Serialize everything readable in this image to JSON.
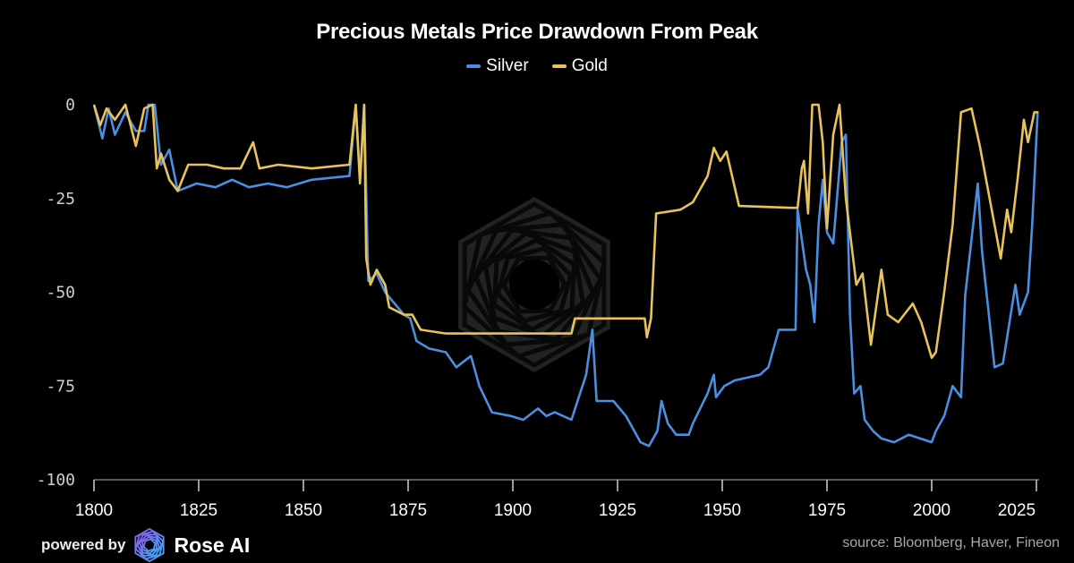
{
  "chart_data": {
    "type": "line",
    "title": "Precious Metals Price Drawdown From Peak",
    "xlabel": "",
    "ylabel": "",
    "xlim": [
      1800,
      2025.5
    ],
    "ylim": [
      -100,
      0
    ],
    "xticks": [
      "1800",
      "1825",
      "1850",
      "1875",
      "1900",
      "1925",
      "1950",
      "1975",
      "2000",
      "2025"
    ],
    "yticks": [
      "0",
      "-25",
      "-50",
      "-75",
      "-100"
    ],
    "grid": false,
    "legend_position": "top-center",
    "series": [
      {
        "name": "Silver",
        "color": "#4a8fe0",
        "points": [
          [
            1800,
            0
          ],
          [
            1802,
            -9
          ],
          [
            1803.5,
            -1
          ],
          [
            1805,
            -8
          ],
          [
            1807.5,
            -2
          ],
          [
            1810,
            -7
          ],
          [
            1812,
            -7
          ],
          [
            1813,
            0
          ],
          [
            1814.5,
            0
          ],
          [
            1816,
            -16
          ],
          [
            1818,
            -12
          ],
          [
            1820,
            -23
          ],
          [
            1824.5,
            -21
          ],
          [
            1829,
            -22
          ],
          [
            1833,
            -20
          ],
          [
            1837,
            -22
          ],
          [
            1841.5,
            -21
          ],
          [
            1846,
            -22
          ],
          [
            1852,
            -20
          ],
          [
            1861,
            -19
          ],
          [
            1862.5,
            0
          ],
          [
            1863.5,
            -20
          ],
          [
            1864.5,
            0
          ],
          [
            1865.5,
            -47
          ],
          [
            1867.5,
            -45
          ],
          [
            1869.5,
            -50
          ],
          [
            1874,
            -56
          ],
          [
            1875.5,
            -57
          ],
          [
            1877,
            -63
          ],
          [
            1880,
            -65
          ],
          [
            1884,
            -66
          ],
          [
            1886.5,
            -70
          ],
          [
            1890,
            -67
          ],
          [
            1892,
            -75
          ],
          [
            1895,
            -82
          ],
          [
            1899.5,
            -83
          ],
          [
            1902.5,
            -84
          ],
          [
            1906,
            -81
          ],
          [
            1908,
            -83
          ],
          [
            1910,
            -82
          ],
          [
            1914,
            -84
          ],
          [
            1917.5,
            -72
          ],
          [
            1919,
            -60
          ],
          [
            1920,
            -79
          ],
          [
            1924,
            -79
          ],
          [
            1927,
            -83
          ],
          [
            1930.5,
            -90
          ],
          [
            1932.5,
            -91
          ],
          [
            1934.5,
            -87
          ],
          [
            1935.5,
            -79
          ],
          [
            1937,
            -85
          ],
          [
            1939,
            -88
          ],
          [
            1942,
            -88
          ],
          [
            1943,
            -85
          ],
          [
            1946.5,
            -77
          ],
          [
            1948,
            -72
          ],
          [
            1948.5,
            -78
          ],
          [
            1950.5,
            -75
          ],
          [
            1953,
            -73.5
          ],
          [
            1959,
            -72
          ],
          [
            1961,
            -70
          ],
          [
            1963.5,
            -60
          ],
          [
            1967.5,
            -60
          ],
          [
            1968,
            -28
          ],
          [
            1970,
            -44
          ],
          [
            1971,
            -48
          ],
          [
            1972,
            -58
          ],
          [
            1973,
            -32
          ],
          [
            1974,
            -20
          ],
          [
            1975,
            -34
          ],
          [
            1976.5,
            -37
          ],
          [
            1978.5,
            -10
          ],
          [
            1979.5,
            -8
          ],
          [
            1980.5,
            -56
          ],
          [
            1981.5,
            -77
          ],
          [
            1983,
            -75
          ],
          [
            1984,
            -84
          ],
          [
            1986,
            -87
          ],
          [
            1988,
            -89
          ],
          [
            1991,
            -90
          ],
          [
            1994.5,
            -88
          ],
          [
            2000,
            -90
          ],
          [
            2001,
            -87
          ],
          [
            2003,
            -83
          ],
          [
            2005,
            -75
          ],
          [
            2007,
            -78
          ],
          [
            2008,
            -51
          ],
          [
            2011,
            -21
          ],
          [
            2012,
            -39
          ],
          [
            2015,
            -70
          ],
          [
            2017,
            -69
          ],
          [
            2020,
            -48
          ],
          [
            2021,
            -56
          ],
          [
            2023,
            -50
          ],
          [
            2024,
            -32
          ],
          [
            2025.3,
            -2
          ]
        ]
      },
      {
        "name": "Gold",
        "color": "#e8c25a",
        "points": [
          [
            1800,
            0
          ],
          [
            1801.5,
            -5.5
          ],
          [
            1803,
            -1
          ],
          [
            1805,
            -4
          ],
          [
            1807.5,
            0
          ],
          [
            1810,
            -11
          ],
          [
            1812,
            -1
          ],
          [
            1814,
            0
          ],
          [
            1815,
            -17
          ],
          [
            1816,
            -13
          ],
          [
            1818,
            -20
          ],
          [
            1820,
            -23
          ],
          [
            1822.5,
            -16
          ],
          [
            1827,
            -16
          ],
          [
            1831,
            -17
          ],
          [
            1835,
            -17
          ],
          [
            1838,
            -10
          ],
          [
            1839.5,
            -17
          ],
          [
            1844,
            -16
          ],
          [
            1852,
            -17
          ],
          [
            1861,
            -16
          ],
          [
            1862.5,
            0
          ],
          [
            1863.5,
            -21
          ],
          [
            1864.5,
            0
          ],
          [
            1865,
            -41
          ],
          [
            1866,
            -48
          ],
          [
            1867.5,
            -44
          ],
          [
            1869.5,
            -48
          ],
          [
            1870.5,
            -54
          ],
          [
            1874,
            -56
          ],
          [
            1876,
            -56
          ],
          [
            1878,
            -60
          ],
          [
            1884,
            -61
          ],
          [
            1895,
            -61
          ],
          [
            1914,
            -61
          ],
          [
            1914.8,
            -57
          ],
          [
            1927,
            -57
          ],
          [
            1931.5,
            -57
          ],
          [
            1932,
            -62
          ],
          [
            1933,
            -57
          ],
          [
            1934.2,
            -29
          ],
          [
            1940,
            -28
          ],
          [
            1943,
            -26
          ],
          [
            1946.5,
            -19
          ],
          [
            1948,
            -11.5
          ],
          [
            1949.5,
            -15
          ],
          [
            1951,
            -12.5
          ],
          [
            1954,
            -27
          ],
          [
            1966.5,
            -27.5
          ],
          [
            1968,
            -27.5
          ],
          [
            1969,
            -17
          ],
          [
            1969.5,
            -15
          ],
          [
            1970.5,
            -29
          ],
          [
            1971.5,
            0
          ],
          [
            1973,
            0
          ],
          [
            1974,
            -10
          ],
          [
            1975,
            -33
          ],
          [
            1976.5,
            -8
          ],
          [
            1978,
            0
          ],
          [
            1979.5,
            -25
          ],
          [
            1982,
            -48
          ],
          [
            1983.5,
            -45
          ],
          [
            1985.5,
            -64
          ],
          [
            1988,
            -44
          ],
          [
            1989.5,
            -56
          ],
          [
            1992,
            -58
          ],
          [
            1995.5,
            -53
          ],
          [
            1997.5,
            -58
          ],
          [
            2000,
            -67.5
          ],
          [
            2001,
            -66
          ],
          [
            2003,
            -50
          ],
          [
            2005,
            -32
          ],
          [
            2007,
            -2
          ],
          [
            2009.5,
            -1
          ],
          [
            2011.5,
            -11
          ],
          [
            2015,
            -32
          ],
          [
            2016.5,
            -41
          ],
          [
            2018,
            -28
          ],
          [
            2019,
            -34
          ],
          [
            2020.5,
            -20
          ],
          [
            2022,
            -4
          ],
          [
            2023,
            -10
          ],
          [
            2024.5,
            -2
          ],
          [
            2025.5,
            -2
          ]
        ]
      }
    ]
  },
  "footer": {
    "powered_by": "powered by",
    "brand": "Rose AI",
    "source": "source: Bloomberg, Haver, Fineon"
  },
  "colors": {
    "background": "#000000",
    "axis": "#5a5a5a",
    "watermark": "#2a2a2a"
  }
}
